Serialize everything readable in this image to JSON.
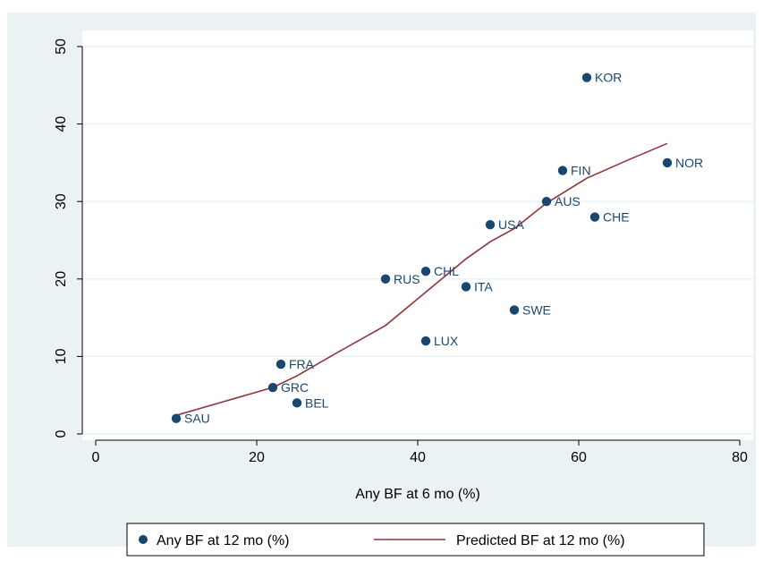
{
  "chart_data": {
    "type": "scatter",
    "title": "",
    "xlabel": "Any BF at 6 mo (%)",
    "ylabel": "",
    "xlim": [
      0,
      80
    ],
    "ylim": [
      0,
      50
    ],
    "xticks": [
      0,
      20,
      40,
      60,
      80
    ],
    "yticks": [
      0,
      10,
      20,
      30,
      40,
      50
    ],
    "grid": "horizontal",
    "legend_position": "bottom",
    "series": [
      {
        "name": "Any BF at 12 mo (%)",
        "type": "scatter",
        "color": "#1a476f",
        "points": [
          {
            "label": "SAU",
            "x": 10,
            "y": 2
          },
          {
            "label": "GRC",
            "x": 22,
            "y": 6
          },
          {
            "label": "FRA",
            "x": 23,
            "y": 9
          },
          {
            "label": "BEL",
            "x": 25,
            "y": 4
          },
          {
            "label": "RUS",
            "x": 36,
            "y": 20
          },
          {
            "label": "CHL",
            "x": 41,
            "y": 21
          },
          {
            "label": "LUX",
            "x": 41,
            "y": 12
          },
          {
            "label": "ITA",
            "x": 46,
            "y": 19
          },
          {
            "label": "USA",
            "x": 49,
            "y": 27
          },
          {
            "label": "SWE",
            "x": 52,
            "y": 16
          },
          {
            "label": "AUS",
            "x": 56,
            "y": 30
          },
          {
            "label": "FIN",
            "x": 58,
            "y": 34
          },
          {
            "label": "KOR",
            "x": 61,
            "y": 46
          },
          {
            "label": "CHE",
            "x": 62,
            "y": 28
          },
          {
            "label": "NOR",
            "x": 71,
            "y": 35
          }
        ]
      },
      {
        "name": "Predicted BF at 12 mo (%)",
        "type": "line",
        "color": "#90353b",
        "points": [
          {
            "x": 10,
            "y": 2.4
          },
          {
            "x": 22,
            "y": 6.0
          },
          {
            "x": 25,
            "y": 7.5
          },
          {
            "x": 30,
            "y": 10.5
          },
          {
            "x": 36,
            "y": 14.0
          },
          {
            "x": 41,
            "y": 18.3
          },
          {
            "x": 46,
            "y": 22.6
          },
          {
            "x": 49,
            "y": 24.8
          },
          {
            "x": 52,
            "y": 26.5
          },
          {
            "x": 56,
            "y": 29.8
          },
          {
            "x": 61,
            "y": 33.0
          },
          {
            "x": 66,
            "y": 35.3
          },
          {
            "x": 71,
            "y": 37.5
          }
        ]
      }
    ]
  }
}
